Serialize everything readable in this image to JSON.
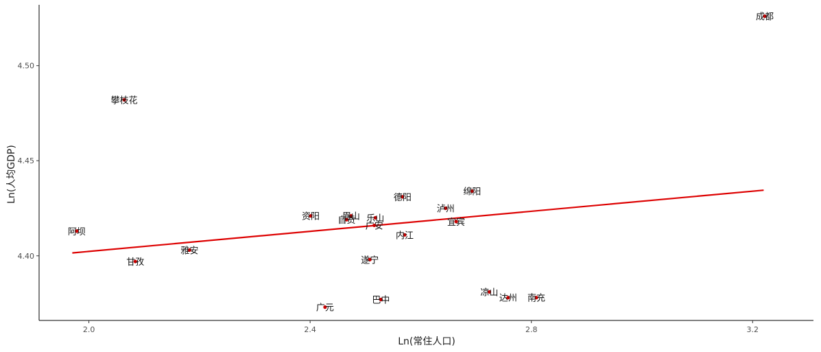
{
  "chart_data": {
    "type": "scatter",
    "title": "",
    "xlabel": "Ln(常住人口)",
    "ylabel": "Ln(人均GDP)",
    "xlim": [
      1.91,
      3.31
    ],
    "ylim": [
      4.366,
      4.532
    ],
    "xticks": [
      2.0,
      2.4,
      2.8,
      3.2
    ],
    "xtick_labels": [
      "2.0",
      "2.4",
      "2.8",
      "3.2"
    ],
    "yticks": [
      4.4,
      4.45,
      4.5
    ],
    "ytick_labels": [
      "4.40",
      "4.45",
      "4.50"
    ],
    "grid": false,
    "point_color": "#cc0000",
    "fit_color": "#dd0000",
    "points": [
      {
        "name": "成都",
        "x": 3.222,
        "y": 4.526
      },
      {
        "name": "攀枝花",
        "x": 2.064,
        "y": 4.482
      },
      {
        "name": "绵阳",
        "x": 2.693,
        "y": 4.434
      },
      {
        "name": "德阳",
        "x": 2.567,
        "y": 4.431
      },
      {
        "name": "泸州",
        "x": 2.645,
        "y": 4.425
      },
      {
        "name": "资阳",
        "x": 2.401,
        "y": 4.421
      },
      {
        "name": "眉山",
        "x": 2.474,
        "y": 4.421
      },
      {
        "name": "乐山",
        "x": 2.518,
        "y": 4.42
      },
      {
        "name": "自贡",
        "x": 2.466,
        "y": 4.419
      },
      {
        "name": "宜宾",
        "x": 2.664,
        "y": 4.418
      },
      {
        "name": "广安",
        "x": 2.516,
        "y": 4.416
      },
      {
        "name": "阿坝",
        "x": 1.978,
        "y": 4.413
      },
      {
        "name": "内江",
        "x": 2.571,
        "y": 4.411
      },
      {
        "name": "雅安",
        "x": 2.182,
        "y": 4.403
      },
      {
        "name": "甘孜",
        "x": 2.084,
        "y": 4.397
      },
      {
        "name": "遂宁",
        "x": 2.508,
        "y": 4.398
      },
      {
        "name": "凉山",
        "x": 2.724,
        "y": 4.381
      },
      {
        "name": "达州",
        "x": 2.758,
        "y": 4.378
      },
      {
        "name": "南充",
        "x": 2.809,
        "y": 4.378
      },
      {
        "name": "巴中",
        "x": 2.528,
        "y": 4.377
      },
      {
        "name": "广元",
        "x": 2.427,
        "y": 4.373
      }
    ],
    "fit_line": {
      "x": [
        1.97,
        3.22
      ],
      "y": [
        4.4015,
        4.4345
      ]
    }
  }
}
